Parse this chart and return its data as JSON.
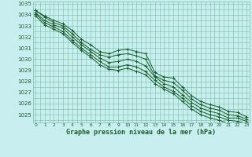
{
  "title": "Graphe pression niveau de la mer (hPa)",
  "background_color": "#c8eef0",
  "plot_bg_color": "#c8eef0",
  "grid_color": "#7abfa8",
  "line_color": "#1a5c2a",
  "x_values": [
    0,
    1,
    2,
    3,
    4,
    5,
    6,
    7,
    8,
    9,
    10,
    11,
    12,
    13,
    14,
    15,
    16,
    17,
    18,
    19,
    20,
    21,
    22,
    23
  ],
  "ylim": [
    1024.3,
    1035.2
  ],
  "yticks": [
    1025,
    1026,
    1027,
    1028,
    1029,
    1030,
    1031,
    1032,
    1033,
    1034,
    1035
  ],
  "series": [
    [
      1034.4,
      1033.9,
      1033.5,
      1033.2,
      1032.6,
      1031.8,
      1031.3,
      1030.7,
      1030.5,
      1030.8,
      1030.9,
      1030.7,
      1030.5,
      1028.8,
      1028.4,
      1028.3,
      1027.5,
      1026.7,
      1026.2,
      1025.9,
      1025.7,
      1025.3,
      1025.2,
      1024.8
    ],
    [
      1034.4,
      1033.8,
      1033.3,
      1033.0,
      1032.3,
      1031.5,
      1030.9,
      1030.4,
      1030.2,
      1030.4,
      1030.5,
      1030.3,
      1030.0,
      1028.5,
      1028.1,
      1027.9,
      1027.2,
      1026.4,
      1025.9,
      1025.6,
      1025.4,
      1025.0,
      1024.9,
      1024.6
    ],
    [
      1034.2,
      1033.5,
      1033.1,
      1032.8,
      1032.0,
      1031.3,
      1030.7,
      1030.1,
      1029.7,
      1029.8,
      1030.0,
      1029.8,
      1029.4,
      1028.4,
      1027.8,
      1027.5,
      1026.8,
      1026.1,
      1025.6,
      1025.3,
      1025.1,
      1024.7,
      1024.7,
      1024.4
    ],
    [
      1034.1,
      1033.3,
      1032.9,
      1032.5,
      1031.7,
      1031.0,
      1030.4,
      1029.8,
      1029.3,
      1029.3,
      1029.5,
      1029.3,
      1028.9,
      1028.1,
      1027.5,
      1027.1,
      1026.5,
      1025.8,
      1025.3,
      1025.0,
      1024.8,
      1024.5,
      1024.4,
      1024.2
    ],
    [
      1033.9,
      1033.1,
      1032.7,
      1032.3,
      1031.5,
      1030.8,
      1030.2,
      1029.5,
      1029.1,
      1029.0,
      1029.2,
      1028.9,
      1028.6,
      1027.8,
      1027.3,
      1026.9,
      1026.2,
      1025.5,
      1025.0,
      1024.7,
      1024.5,
      1024.2,
      1024.2,
      1023.9
    ]
  ]
}
